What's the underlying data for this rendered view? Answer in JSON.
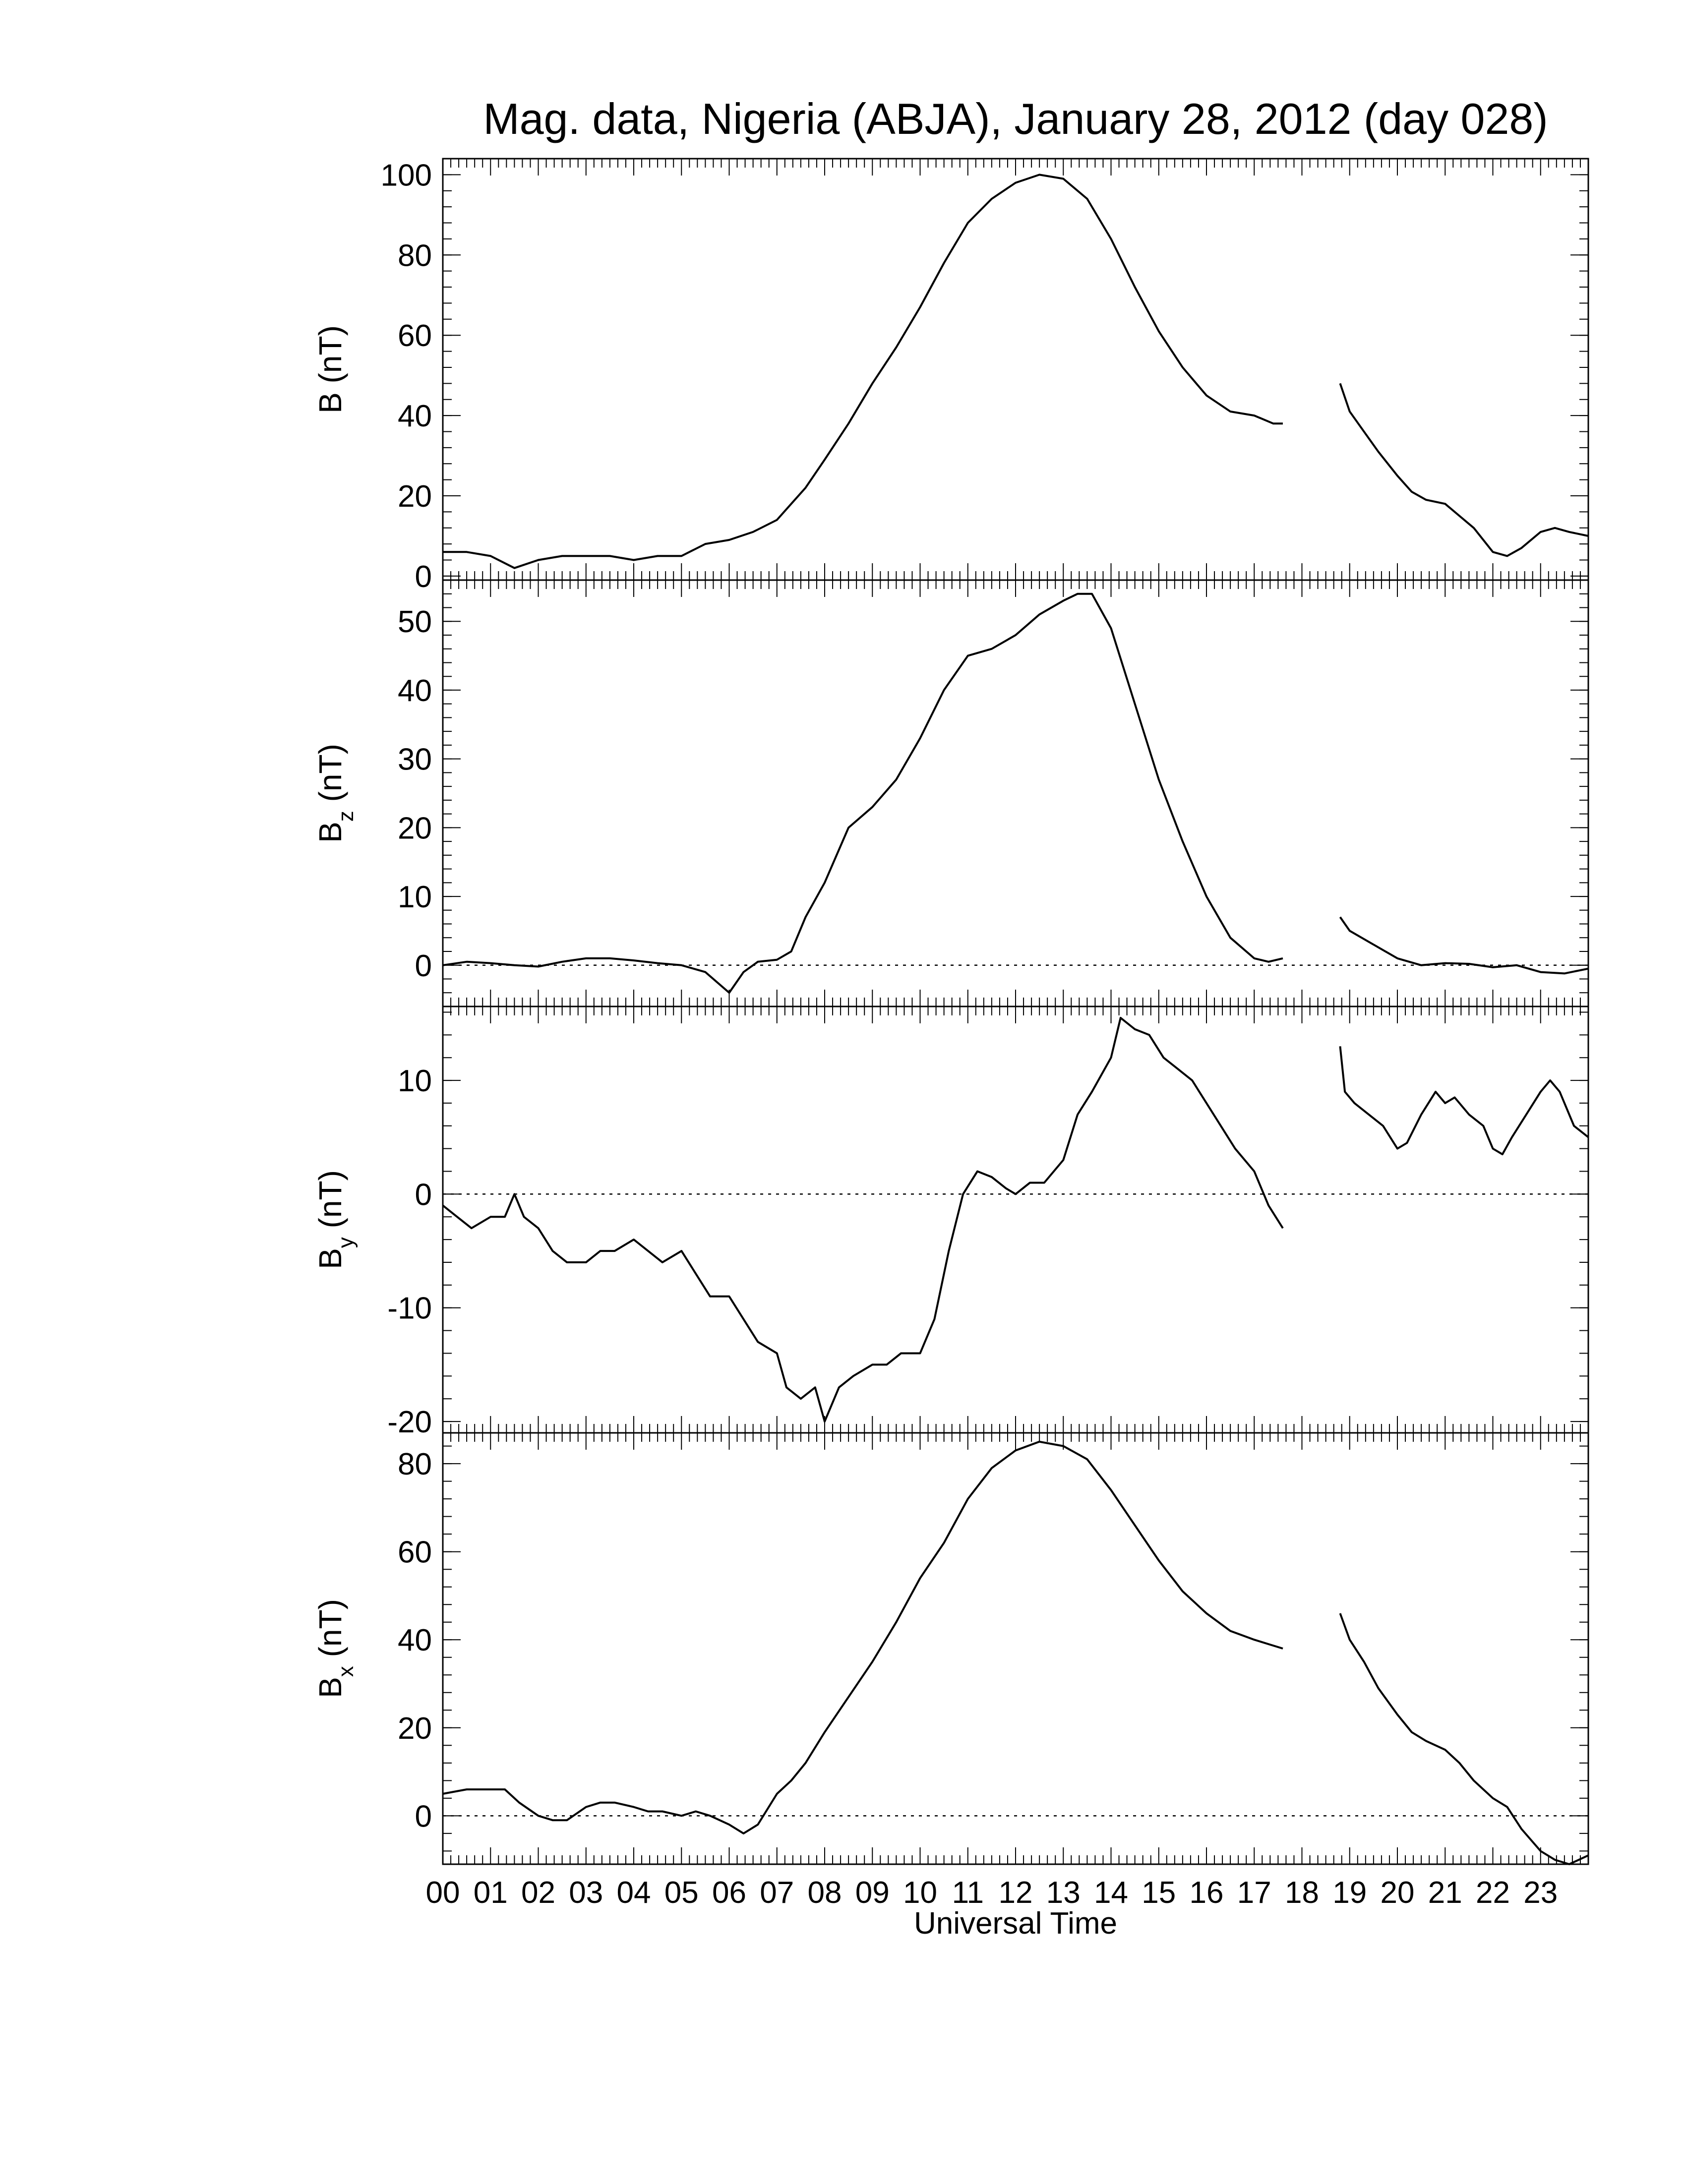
{
  "title": "Mag. data, Nigeria (ABJA), January 28, 2012 (day 028)",
  "x_axis": {
    "label": "Universal Time",
    "unit": "hours UT",
    "range": [
      0,
      24
    ],
    "tick_labels": [
      "00",
      "01",
      "02",
      "03",
      "04",
      "05",
      "06",
      "07",
      "08",
      "09",
      "10",
      "11",
      "12",
      "13",
      "14",
      "15",
      "16",
      "17",
      "18",
      "19",
      "20",
      "21",
      "22",
      "23"
    ],
    "minor_ticks_per_hour": 6
  },
  "line_color": "#000000",
  "zero_line_style": "dotted",
  "data_gap_hours": [
    17.6,
    18.8
  ],
  "chart_data": [
    {
      "type": "line",
      "panel": "B",
      "ylabel": "B (nT)",
      "ylabel_main": "B",
      "ylabel_sub": "",
      "ylabel_unit": "(nT)",
      "ylim": [
        -1,
        104
      ],
      "yticks": [
        0,
        20,
        40,
        60,
        80,
        100
      ],
      "zero_line": false,
      "segments": [
        {
          "x": [
            0,
            0.5,
            1,
            1.5,
            2,
            2.5,
            3,
            3.5,
            4,
            4.5,
            5,
            5.5,
            6,
            6.5,
            7,
            7.3,
            7.6,
            8,
            8.5,
            9,
            9.5,
            10,
            10.5,
            11,
            11.5,
            12,
            12.5,
            13,
            13.5,
            14,
            14.5,
            15,
            15.5,
            16,
            16.5,
            17,
            17.4,
            17.6
          ],
          "y": [
            6,
            6,
            5,
            2,
            4,
            5,
            5,
            5,
            4,
            5,
            5,
            8,
            9,
            11,
            14,
            18,
            22,
            29,
            38,
            48,
            57,
            67,
            78,
            88,
            94,
            98,
            100,
            99,
            94,
            84,
            72,
            61,
            52,
            45,
            41,
            40,
            38,
            38
          ]
        },
        {
          "x": [
            18.8,
            19,
            19.3,
            19.6,
            20,
            20.3,
            20.6,
            21,
            21.3,
            21.6,
            22,
            22.3,
            22.6,
            23,
            23.3,
            23.6,
            24
          ],
          "y": [
            48,
            41,
            36,
            31,
            25,
            21,
            19,
            18,
            15,
            12,
            6,
            5,
            7,
            11,
            12,
            11,
            10
          ]
        }
      ]
    },
    {
      "type": "line",
      "panel": "Bz",
      "ylabel": "Bz (nT)",
      "ylabel_main": "B",
      "ylabel_sub": "z",
      "ylabel_unit": "(nT)",
      "ylim": [
        -6,
        56
      ],
      "yticks": [
        0,
        10,
        20,
        30,
        40,
        50
      ],
      "zero_line": true,
      "segments": [
        {
          "x": [
            0,
            0.5,
            1,
            1.5,
            2,
            2.5,
            3,
            3.5,
            4,
            4.5,
            5,
            5.5,
            6,
            6.3,
            6.6,
            7,
            7.3,
            7.6,
            8,
            8.5,
            9,
            9.5,
            10,
            10.5,
            11,
            11.5,
            12,
            12.5,
            13,
            13.3,
            13.6,
            14,
            14.5,
            15,
            15.5,
            16,
            16.5,
            17,
            17.3,
            17.6
          ],
          "y": [
            0,
            0.5,
            0.3,
            0,
            -0.2,
            0.5,
            1,
            1,
            0.7,
            0.3,
            0,
            -1,
            -4,
            -1,
            0.5,
            0.8,
            2,
            7,
            12,
            20,
            23,
            27,
            33,
            40,
            45,
            46,
            48,
            51,
            53,
            54,
            54,
            49,
            38,
            27,
            18,
            10,
            4,
            1,
            0.5,
            1
          ]
        },
        {
          "x": [
            18.8,
            19,
            19.5,
            20,
            20.5,
            21,
            21.5,
            22,
            22.5,
            23,
            23.5,
            24
          ],
          "y": [
            7,
            5,
            3,
            1,
            0,
            0.3,
            0.2,
            -0.3,
            0,
            -1,
            -1.2,
            -0.5
          ]
        }
      ]
    },
    {
      "type": "line",
      "panel": "By",
      "ylabel": "By (nT)",
      "ylabel_main": "B",
      "ylabel_sub": "y",
      "ylabel_unit": "(nT)",
      "ylim": [
        -21,
        16.5
      ],
      "yticks": [
        -20,
        -10,
        0,
        10
      ],
      "zero_line": true,
      "segments": [
        {
          "x": [
            0,
            0.3,
            0.6,
            1,
            1.3,
            1.5,
            1.7,
            2,
            2.3,
            2.6,
            3,
            3.3,
            3.6,
            4,
            4.3,
            4.6,
            5,
            5.3,
            5.6,
            6,
            6.3,
            6.6,
            7,
            7.2,
            7.5,
            7.8,
            8,
            8.3,
            8.6,
            9,
            9.3,
            9.6,
            10,
            10.3,
            10.6,
            10.9,
            11.2,
            11.5,
            11.8,
            12,
            12.3,
            12.6,
            13,
            13.3,
            13.6,
            14,
            14.2,
            14.5,
            14.8,
            15.1,
            15.4,
            15.7,
            16,
            16.3,
            16.6,
            17,
            17.3,
            17.6
          ],
          "y": [
            -1,
            -2,
            -3,
            -2,
            -2,
            0,
            -2,
            -3,
            -5,
            -6,
            -6,
            -5,
            -5,
            -4,
            -5,
            -6,
            -5,
            -7,
            -9,
            -9,
            -11,
            -13,
            -14,
            -17,
            -18,
            -17,
            -20,
            -17,
            -16,
            -15,
            -15,
            -14,
            -14,
            -11,
            -5,
            0,
            2,
            1.5,
            0.5,
            0,
            1,
            1,
            3,
            7,
            9,
            12,
            15.5,
            14.5,
            14,
            12,
            11,
            10,
            8,
            6,
            4,
            2,
            -1,
            -3
          ]
        },
        {
          "x": [
            18.8,
            18.9,
            19.1,
            19.4,
            19.7,
            20,
            20.2,
            20.5,
            20.8,
            21,
            21.2,
            21.5,
            21.8,
            22,
            22.2,
            22.4,
            22.7,
            23,
            23.2,
            23.4,
            23.7,
            24
          ],
          "y": [
            13,
            9,
            8,
            7,
            6,
            4,
            4.5,
            7,
            9,
            8,
            8.5,
            7,
            6,
            4,
            3.5,
            5,
            7,
            9,
            10,
            9,
            6,
            5
          ]
        }
      ]
    },
    {
      "type": "line",
      "panel": "Bx",
      "ylabel": "Bx (nT)",
      "ylabel_main": "B",
      "ylabel_sub": "x",
      "ylabel_unit": "(nT)",
      "ylim": [
        -11,
        87
      ],
      "yticks": [
        0,
        20,
        40,
        60,
        80
      ],
      "zero_line": true,
      "segments": [
        {
          "x": [
            0,
            0.5,
            1,
            1.3,
            1.6,
            2,
            2.3,
            2.6,
            3,
            3.3,
            3.6,
            4,
            4.3,
            4.6,
            5,
            5.3,
            5.6,
            6,
            6.3,
            6.6,
            7,
            7.3,
            7.6,
            8,
            8.5,
            9,
            9.5,
            10,
            10.5,
            11,
            11.5,
            12,
            12.5,
            13,
            13.5,
            14,
            14.5,
            15,
            15.5,
            16,
            16.5,
            17,
            17.3,
            17.6
          ],
          "y": [
            5,
            6,
            6,
            6,
            3,
            0,
            -1,
            -1,
            2,
            3,
            3,
            2,
            1,
            1,
            0,
            1,
            0,
            -2,
            -4,
            -2,
            5,
            8,
            12,
            19,
            27,
            35,
            44,
            54,
            62,
            72,
            79,
            83,
            85,
            84,
            81,
            74,
            66,
            58,
            51,
            46,
            42,
            40,
            39,
            38
          ]
        },
        {
          "x": [
            18.8,
            19,
            19.3,
            19.6,
            20,
            20.3,
            20.6,
            21,
            21.3,
            21.6,
            22,
            22.3,
            22.6,
            23,
            23.3,
            23.6,
            24
          ],
          "y": [
            46,
            40,
            35,
            29,
            23,
            19,
            17,
            15,
            12,
            8,
            4,
            2,
            -3,
            -8,
            -10,
            -11,
            -9
          ]
        }
      ]
    }
  ]
}
